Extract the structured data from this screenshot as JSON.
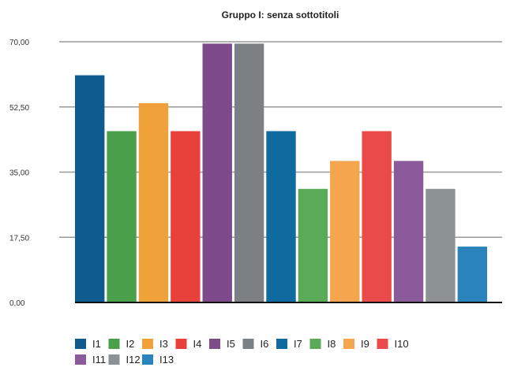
{
  "chart_data": {
    "type": "bar",
    "title": "Gruppo I: senza sottotitoli",
    "xlabel": "",
    "ylabel": "",
    "ylim": [
      0,
      70
    ],
    "yticks": [
      "0,00",
      "17,50",
      "35,00",
      "52,50",
      "70,00"
    ],
    "ytick_values": [
      0,
      17.5,
      35,
      52.5,
      70
    ],
    "grid": true,
    "legend_position": "bottom",
    "categories": [
      "I1",
      "I2",
      "I3",
      "I4",
      "I5",
      "I6",
      "I7",
      "I8",
      "I9",
      "I10",
      "I11",
      "I12",
      "I13"
    ],
    "values": [
      61,
      46,
      53.5,
      46,
      69.5,
      69.5,
      46,
      30.5,
      38,
      46,
      38,
      30.5,
      15
    ],
    "colors": [
      "#0f5a8f",
      "#4aa04a",
      "#f0a13a",
      "#e8403a",
      "#7e4a8c",
      "#7a8083",
      "#0f6aa0",
      "#5aaa5a",
      "#f4a54e",
      "#ea4a4a",
      "#8a5a9a",
      "#8c9194",
      "#2a84bb"
    ]
  }
}
